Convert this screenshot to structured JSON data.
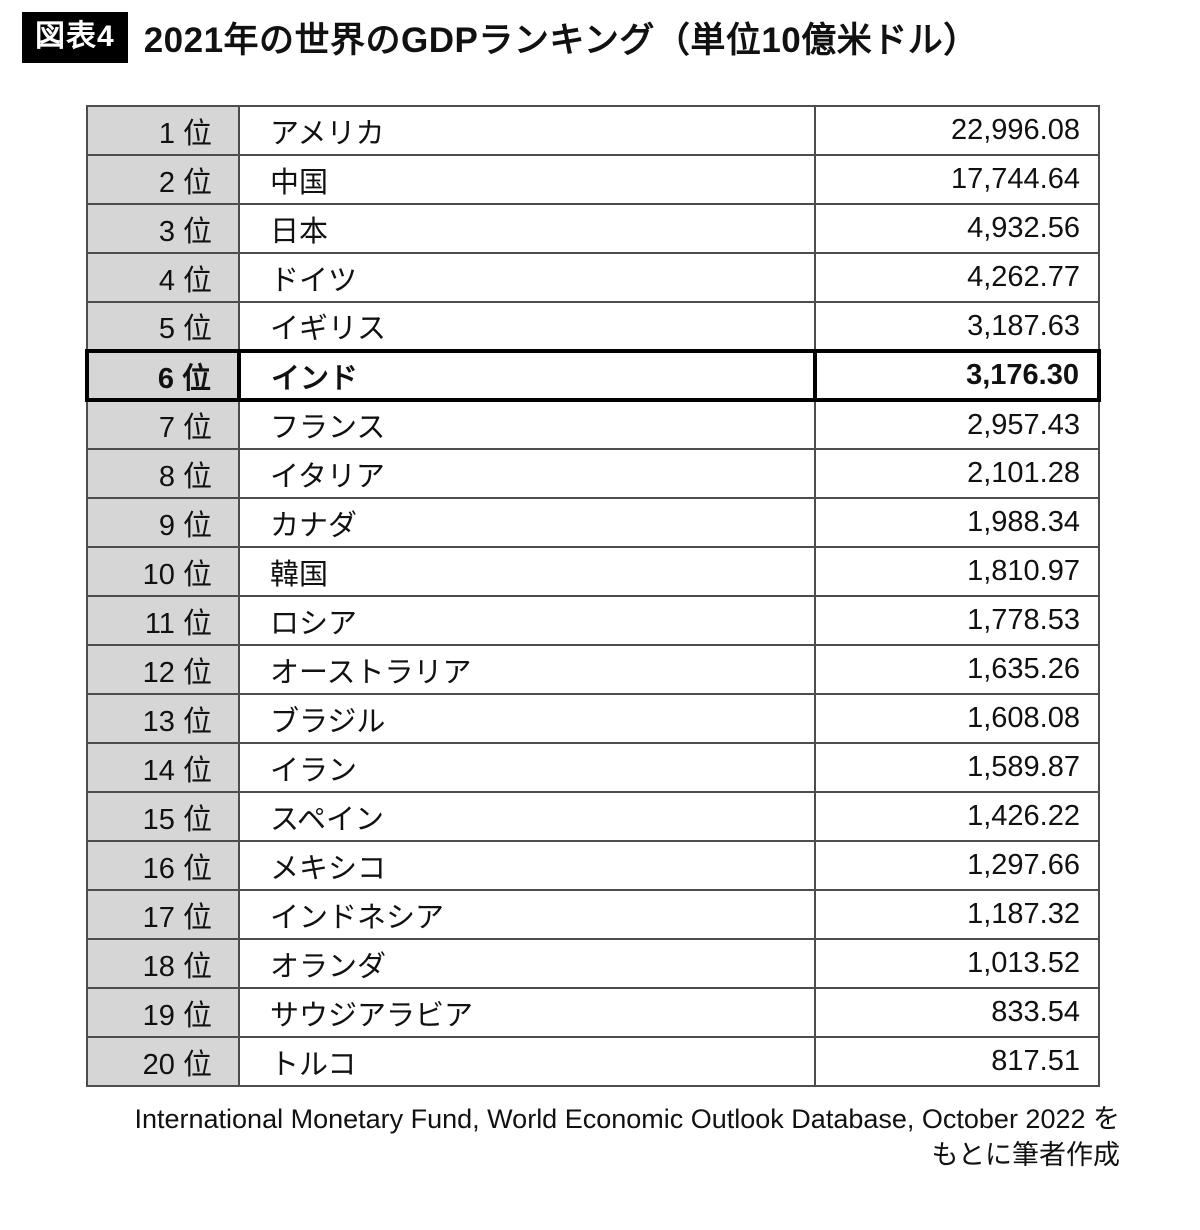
{
  "figure": {
    "tag": "図表4",
    "title": "2021年の世界のGDPランキング（単位10億米ドル）"
  },
  "chart_data": {
    "type": "table",
    "title": "2021年の世界のGDPランキング",
    "unit": "10億米ドル",
    "highlighted_rank": 6,
    "rows": [
      {
        "rank": "1 位",
        "country": "アメリカ",
        "value": "22,996.08",
        "value_num": 22996.08,
        "bold": false
      },
      {
        "rank": "2 位",
        "country": "中国",
        "value": "17,744.64",
        "value_num": 17744.64,
        "bold": false
      },
      {
        "rank": "3 位",
        "country": "日本",
        "value": "4,932.56",
        "value_num": 4932.56,
        "bold": false
      },
      {
        "rank": "4 位",
        "country": "ドイツ",
        "value": "4,262.77",
        "value_num": 4262.77,
        "bold": false
      },
      {
        "rank": "5 位",
        "country": "イギリス",
        "value": "3,187.63",
        "value_num": 3187.63,
        "bold": false
      },
      {
        "rank": "6 位",
        "country": "インド",
        "value": "3,176.30",
        "value_num": 3176.3,
        "bold": true
      },
      {
        "rank": "7 位",
        "country": "フランス",
        "value": "2,957.43",
        "value_num": 2957.43,
        "bold": false
      },
      {
        "rank": "8 位",
        "country": "イタリア",
        "value": "2,101.28",
        "value_num": 2101.28,
        "bold": false
      },
      {
        "rank": "9 位",
        "country": "カナダ",
        "value": "1,988.34",
        "value_num": 1988.34,
        "bold": false
      },
      {
        "rank": "10 位",
        "country": "韓国",
        "value": "1,810.97",
        "value_num": 1810.97,
        "bold": false
      },
      {
        "rank": "11 位",
        "country": "ロシア",
        "value": "1,778.53",
        "value_num": 1778.53,
        "bold": false
      },
      {
        "rank": "12 位",
        "country": "オーストラリア",
        "value": "1,635.26",
        "value_num": 1635.26,
        "bold": false
      },
      {
        "rank": "13 位",
        "country": "ブラジル",
        "value": "1,608.08",
        "value_num": 1608.08,
        "bold": false
      },
      {
        "rank": "14 位",
        "country": "イラン",
        "value": "1,589.87",
        "value_num": 1589.87,
        "bold": false
      },
      {
        "rank": "15 位",
        "country": "スペイン",
        "value": "1,426.22",
        "value_num": 1426.22,
        "bold": false
      },
      {
        "rank": "16 位",
        "country": "メキシコ",
        "value": "1,297.66",
        "value_num": 1297.66,
        "bold": false
      },
      {
        "rank": "17 位",
        "country": "インドネシア",
        "value": "1,187.32",
        "value_num": 1187.32,
        "bold": false
      },
      {
        "rank": "18 位",
        "country": "オランダ",
        "value": "1,013.52",
        "value_num": 1013.52,
        "bold": false
      },
      {
        "rank": "19 位",
        "country": "サウジアラビア",
        "value": "833.54",
        "value_num": 833.54,
        "bold": false
      },
      {
        "rank": "20 位",
        "country": "トルコ",
        "value": "817.51",
        "value_num": 817.51,
        "bold": false
      }
    ],
    "colors": {
      "rank_column_bg": "#d6d6d6",
      "border": "#4d4d4d",
      "highlight_border": "#000000",
      "tag_bg": "#000000",
      "tag_text": "#ffffff"
    }
  },
  "source": {
    "line1": "International Monetary Fund, World Economic Outlook Database, October 2022 を",
    "line2": "もとに筆者作成"
  }
}
